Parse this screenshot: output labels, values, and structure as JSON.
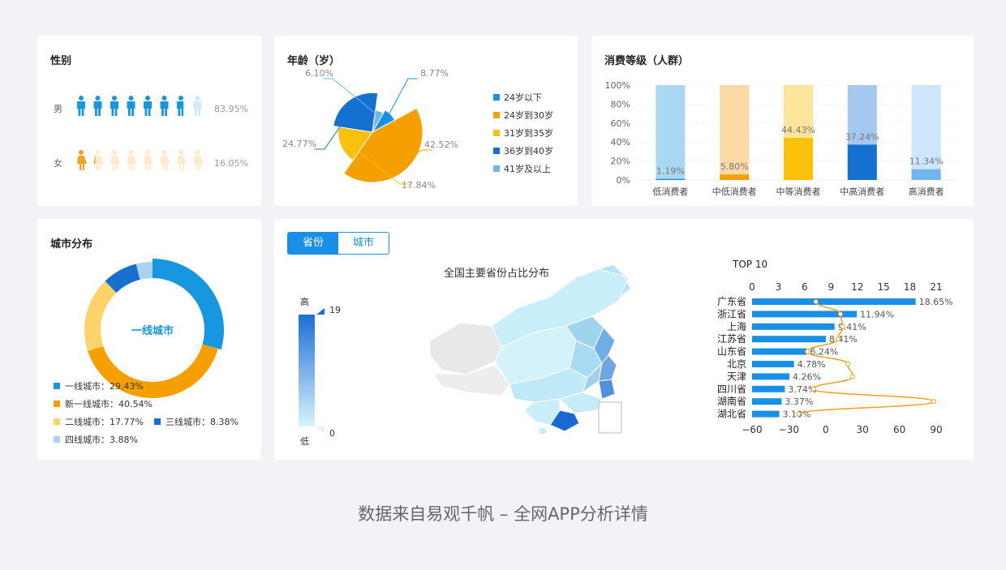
{
  "footer": "数据来自易观千帆 – 全网APP分析详情",
  "gender": {
    "title": "性别",
    "rows": [
      {
        "label": "男",
        "pct": "83.95%",
        "ratio": 0.8395,
        "color": "#1797e0",
        "light": "#cfe9f8"
      },
      {
        "label": "女",
        "pct": "16.05%",
        "ratio": 0.1605,
        "color": "#f5a11c",
        "light": "#fde9cc"
      }
    ]
  },
  "age": {
    "title": "年龄（岁）",
    "legend": [
      {
        "name": "24岁以下",
        "color": "#1990e8"
      },
      {
        "name": "24岁到30岁",
        "color": "#f5a000"
      },
      {
        "name": "31岁到35岁",
        "color": "#fbc10a"
      },
      {
        "name": "36岁到40岁",
        "color": "#1670cf"
      },
      {
        "name": "41岁及以上",
        "color": "#6fb6ef"
      }
    ],
    "labels": [
      "8.77%",
      "42.52%",
      "17.84%",
      "24.77%",
      "6.10%"
    ]
  },
  "consume": {
    "title": "消费等级（人群）"
  },
  "city": {
    "title": "城市分布",
    "center": "一线城市",
    "legend": [
      {
        "name": "一线城市：",
        "value": "29.43%",
        "color": "#1797e0"
      },
      {
        "name": "新一线城市：",
        "value": "40.54%",
        "color": "#f5a000"
      },
      {
        "name": "二线城市：",
        "value": "17.77%",
        "color": "#fdd36a"
      },
      {
        "name": "三线城市：",
        "value": "8.38%",
        "color": "#1670cf"
      },
      {
        "name": "四线城市：",
        "value": "3.88%",
        "color": "#a8d3f5"
      }
    ]
  },
  "map": {
    "tabs": [
      "省份",
      "城市"
    ],
    "title": "全国主要省份占比分布",
    "scale_high": "高",
    "scale_low": "低",
    "scale_max": "19",
    "scale_min": "0"
  },
  "top10": {
    "title": "TOP 10"
  },
  "chart_data": [
    {
      "type": "pie",
      "title": "年龄（岁）",
      "categories": [
        "24岁以下",
        "24岁到30岁",
        "31岁到35岁",
        "36岁到40岁",
        "41岁及以上"
      ],
      "values": [
        8.77,
        42.52,
        17.84,
        24.77,
        6.1
      ]
    },
    {
      "type": "bar",
      "title": "消费等级（人群）",
      "categories": [
        "低消费者",
        "中低消费者",
        "中等消费者",
        "中高消费者",
        "高消费者"
      ],
      "values": [
        1.19,
        5.8,
        44.43,
        37.24,
        11.34
      ],
      "labels": [
        "1.19%",
        "5.80%",
        "44.43%",
        "37.24%",
        "11.34%"
      ],
      "colors": [
        "#1990e8",
        "#f5a000",
        "#fbc10a",
        "#1670cf",
        "#6fb6ef"
      ],
      "light_colors": [
        "#a8d8f2",
        "#fdd9a6",
        "#fde49b",
        "#a3c9ef",
        "#cde6fa"
      ],
      "yticks": [
        "100%",
        "80%",
        "60%",
        "40%",
        "20%",
        "0%"
      ],
      "ylim": [
        0,
        100
      ]
    },
    {
      "type": "pie",
      "title": "城市分布",
      "categories": [
        "一线城市",
        "新一线城市",
        "二线城市",
        "三线城市",
        "四线城市"
      ],
      "values": [
        29.43,
        40.54,
        17.77,
        8.38,
        3.88
      ]
    },
    {
      "type": "bar",
      "title": "TOP 10",
      "categories": [
        "广东省",
        "浙江省",
        "上海",
        "江苏省",
        "山东省",
        "北京",
        "天津",
        "四川省",
        "湖南省",
        "湖北省"
      ],
      "values": [
        18.65,
        11.94,
        9.41,
        8.41,
        6.24,
        4.78,
        4.26,
        3.74,
        3.37,
        3.1
      ],
      "labels": [
        "18.65%",
        "11.94%",
        "9.41%",
        "8.41%",
        "6.24%",
        "4.78%",
        "4.26%",
        "3.74%",
        "3.37%",
        "3.10%"
      ],
      "xlim": [
        0,
        21
      ],
      "top_ticks": [
        "0",
        "3",
        "6",
        "9",
        "12",
        "15",
        "18",
        "21"
      ],
      "bottom_ticks": [
        "−60",
        "−30",
        "0",
        "30",
        "60",
        "90"
      ],
      "bottom_xlim": [
        -60,
        90
      ],
      "line_values": [
        -8,
        12,
        14,
        10,
        -15,
        18,
        22,
        -10,
        88,
        -22
      ]
    }
  ]
}
